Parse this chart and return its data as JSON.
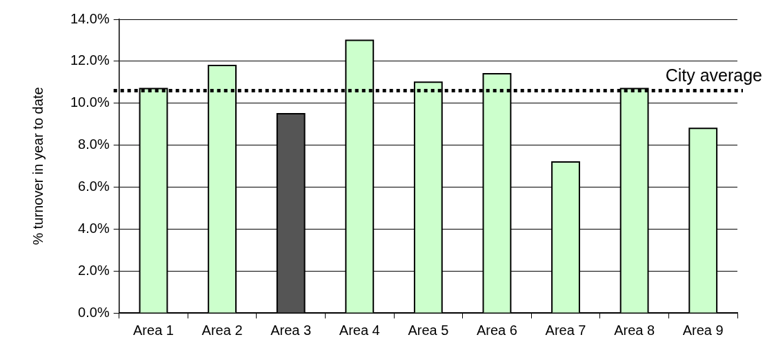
{
  "chart_data": {
    "type": "bar",
    "ylabel": "% turnover in year to date",
    "categories": [
      "Area 1",
      "Area 2",
      "Area 3",
      "Area 4",
      "Area 5",
      "Area 6",
      "Area 7",
      "Area 8",
      "Area 9"
    ],
    "values": [
      10.7,
      11.8,
      9.5,
      13.0,
      11.0,
      11.4,
      7.2,
      10.7,
      8.8
    ],
    "colors": [
      "#ccffcc",
      "#ccffcc",
      "#555555",
      "#ccffcc",
      "#ccffcc",
      "#ccffcc",
      "#ccffcc",
      "#ccffcc",
      "#ccffcc"
    ],
    "ylim": [
      0,
      14
    ],
    "yticks": [
      {
        "value": 0,
        "label": "0.0%"
      },
      {
        "value": 2,
        "label": "2.0%"
      },
      {
        "value": 4,
        "label": "4.0%"
      },
      {
        "value": 6,
        "label": "6.0%"
      },
      {
        "value": 8,
        "label": "8.0%"
      },
      {
        "value": 10,
        "label": "10.0%"
      },
      {
        "value": 12,
        "label": "12.0%"
      },
      {
        "value": 14,
        "label": "14.0%"
      }
    ],
    "grid": "y",
    "legend": false,
    "ref_lines": [
      {
        "axis": "y",
        "value": 10.6,
        "label": "City average",
        "color": "#000000",
        "line_style": "dotted"
      }
    ]
  }
}
